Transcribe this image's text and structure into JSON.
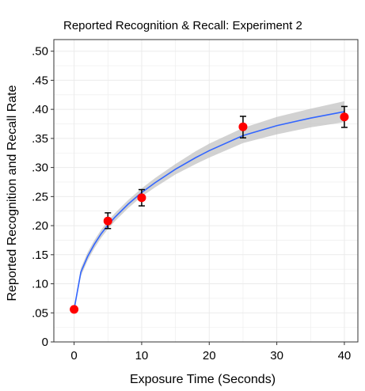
{
  "chart_data": {
    "type": "scatter",
    "title": "Reported Recognition & Recall: Experiment 2",
    "xlabel": "Exposure Time (Seconds)",
    "ylabel": "Reported Recognition and Recall Rate",
    "xlim": [
      -3,
      42
    ],
    "ylim": [
      0,
      0.52
    ],
    "x_ticks": [
      0,
      10,
      20,
      30,
      40
    ],
    "x_tick_labels": [
      "0",
      "10",
      "20",
      "30",
      "40"
    ],
    "y_ticks": [
      0,
      0.05,
      0.1,
      0.15,
      0.2,
      0.25,
      0.3,
      0.35,
      0.4,
      0.45,
      0.5
    ],
    "y_tick_labels": [
      "0",
      ".05",
      ".10",
      ".15",
      ".20",
      ".25",
      ".30",
      ".35",
      ".40",
      ".45",
      ".50"
    ],
    "grid": true,
    "points": [
      {
        "x": 0,
        "y": 0.056,
        "err_low": 0.056,
        "err_high": 0.056
      },
      {
        "x": 5,
        "y": 0.208,
        "err_low": 0.195,
        "err_high": 0.222
      },
      {
        "x": 10,
        "y": 0.248,
        "err_low": 0.234,
        "err_high": 0.262
      },
      {
        "x": 25,
        "y": 0.37,
        "err_low": 0.351,
        "err_high": 0.388
      },
      {
        "x": 40,
        "y": 0.387,
        "err_low": 0.369,
        "err_high": 0.405
      }
    ],
    "fit": {
      "x": [
        0,
        1,
        2,
        3,
        4,
        5,
        6,
        8,
        10,
        12,
        15,
        18,
        20,
        25,
        30,
        35,
        40
      ],
      "y": [
        0.056,
        0.12,
        0.147,
        0.168,
        0.186,
        0.201,
        0.214,
        0.237,
        0.257,
        0.274,
        0.297,
        0.317,
        0.329,
        0.355,
        0.372,
        0.385,
        0.396
      ],
      "band_low": [
        0.052,
        0.113,
        0.14,
        0.161,
        0.179,
        0.194,
        0.207,
        0.23,
        0.25,
        0.266,
        0.288,
        0.306,
        0.317,
        0.342,
        0.357,
        0.369,
        0.378
      ],
      "band_high": [
        0.06,
        0.127,
        0.154,
        0.175,
        0.193,
        0.208,
        0.221,
        0.244,
        0.264,
        0.282,
        0.306,
        0.328,
        0.341,
        0.368,
        0.387,
        0.401,
        0.414
      ]
    },
    "colors": {
      "point": "#ff0000",
      "fit_line": "#3366ff",
      "band": "#bfbfbf",
      "grid": "#ebebeb",
      "errorbar": "#000000"
    }
  }
}
